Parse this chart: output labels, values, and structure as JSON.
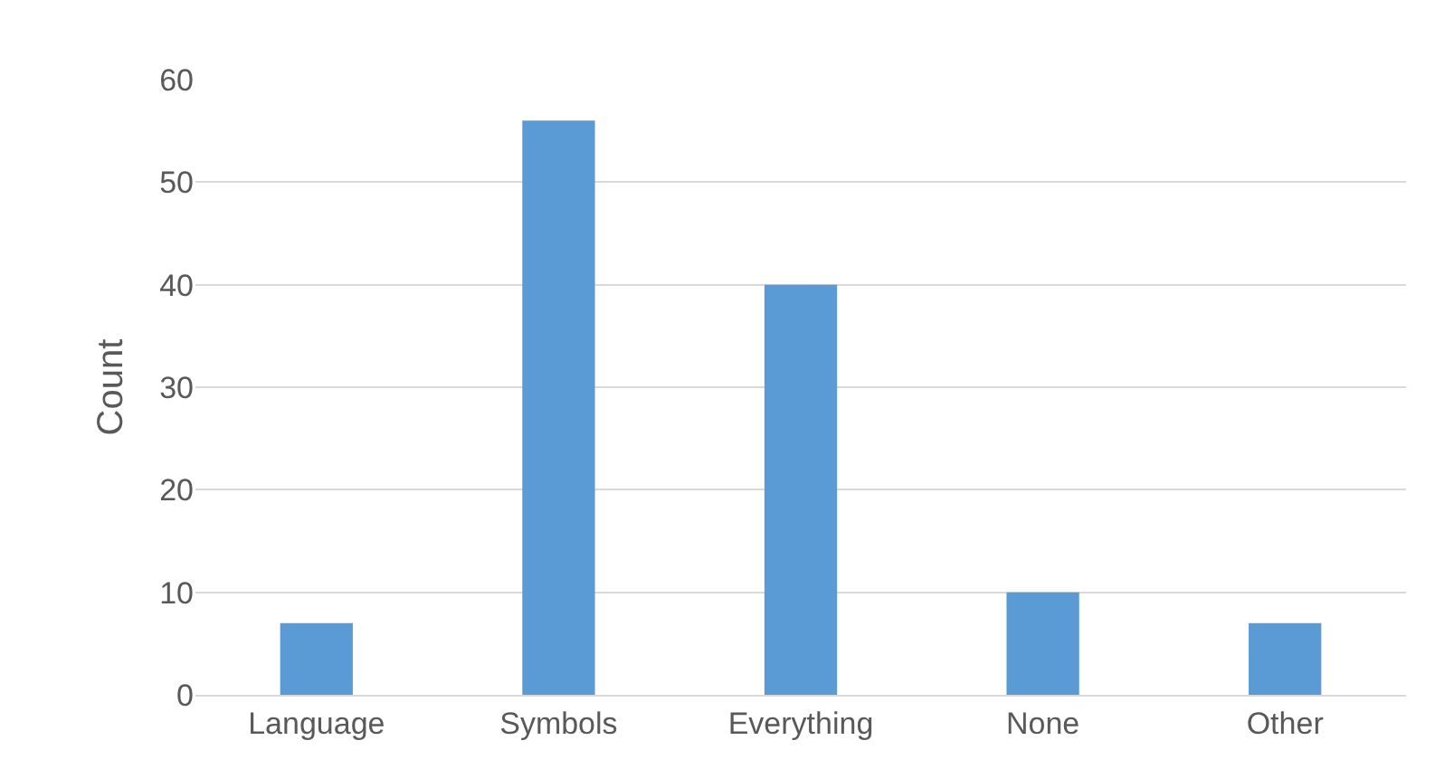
{
  "chart_data": {
    "type": "bar",
    "ylabel": "Count",
    "categories": [
      "Language",
      "Symbols",
      "Everything",
      "None",
      "Other"
    ],
    "values": [
      7,
      56,
      40,
      10,
      7
    ],
    "color": "#5b9bd5",
    "ylim": [
      0,
      60
    ],
    "yticks": [
      0,
      10,
      20,
      30,
      40,
      50,
      60
    ],
    "grid": "y"
  }
}
